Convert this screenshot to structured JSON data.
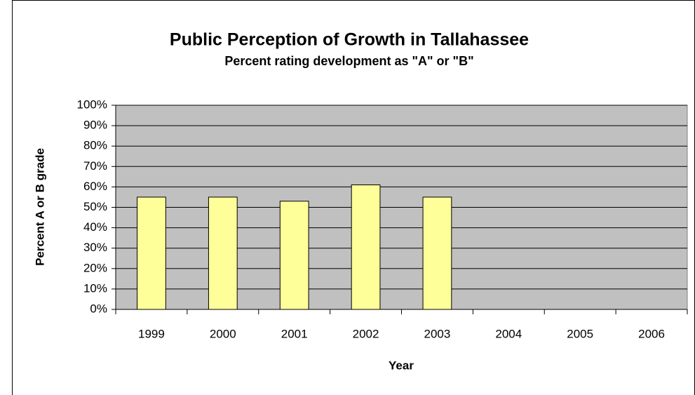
{
  "chart_data": {
    "type": "bar",
    "title": "Public Perception of Growth in Tallahassee",
    "subtitle": "Percent rating development as \"A\" or \"B\"",
    "x_label": "Year",
    "y_label": "Percent A or B grade",
    "categories": [
      "1999",
      "2000",
      "2001",
      "2002",
      "2003",
      "2004",
      "2005",
      "2006"
    ],
    "values": [
      55,
      55,
      53,
      61,
      55,
      null,
      null,
      null
    ],
    "color": "#ffff99",
    "ylim": [
      0,
      100
    ],
    "yticks": [
      {
        "value": 0,
        "label": "0%"
      },
      {
        "value": 10,
        "label": "10%"
      },
      {
        "value": 20,
        "label": "20%"
      },
      {
        "value": 30,
        "label": "30%"
      },
      {
        "value": 40,
        "label": "40%"
      },
      {
        "value": 50,
        "label": "50%"
      },
      {
        "value": 60,
        "label": "60%"
      },
      {
        "value": 70,
        "label": "70%"
      },
      {
        "value": 80,
        "label": "80%"
      },
      {
        "value": 90,
        "label": "90%"
      },
      {
        "value": 100,
        "label": "100%"
      }
    ],
    "grid": true
  }
}
